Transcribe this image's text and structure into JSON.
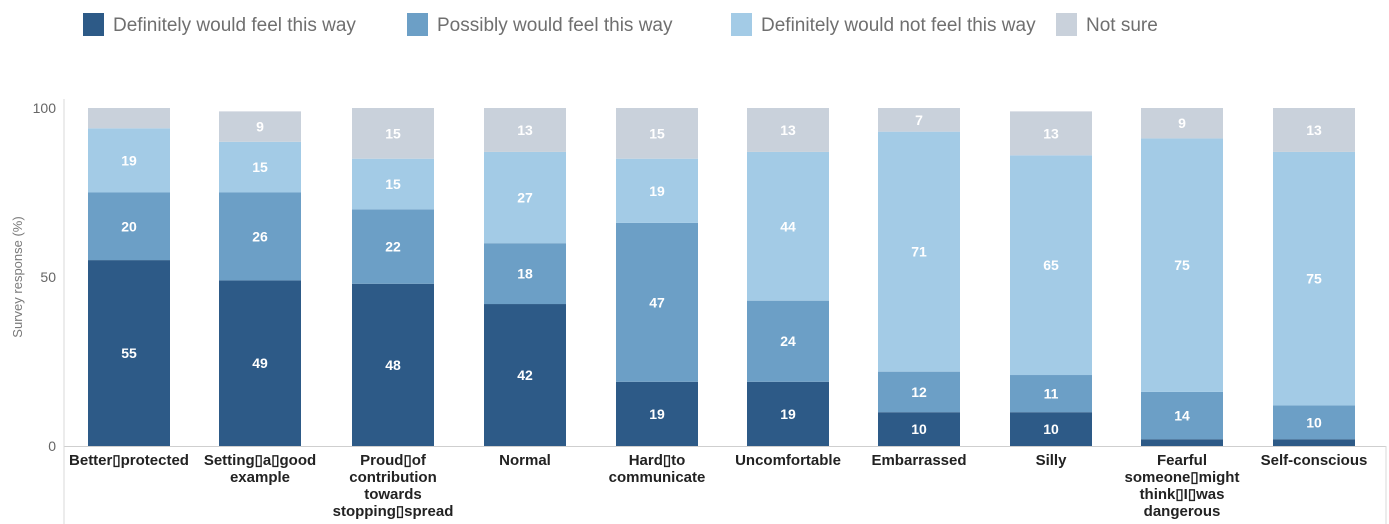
{
  "chart_data": {
    "type": "bar",
    "stacked": true,
    "ylabel": "Survey response (%)",
    "ylim": [
      0,
      100
    ],
    "yticks": [
      0,
      50,
      100
    ],
    "grid": false,
    "legend_position": "top",
    "categories": [
      "Better protected",
      "Setting a good example",
      "Proud of contribution towards stopping spread",
      "Normal",
      "Hard to communicate",
      "Uncomfortable",
      "Embarrassed",
      "Silly",
      "Fearful someone might think I was dangerous",
      "Self-conscious"
    ],
    "category_lines": [
      [
        "Better▯protected"
      ],
      [
        "Setting▯a▯good",
        "example"
      ],
      [
        "Proud▯of",
        "contribution",
        "towards",
        "stopping▯spread"
      ],
      [
        "Normal"
      ],
      [
        "Hard▯to",
        "communicate"
      ],
      [
        "Uncomfortable"
      ],
      [
        "Embarrassed"
      ],
      [
        "Silly"
      ],
      [
        "Fearful",
        "someone▯might",
        "think▯I▯was",
        "dangerous"
      ],
      [
        "Self-conscious"
      ]
    ],
    "series": [
      {
        "name": "Definitely would feel this way",
        "color": "#2d5a87",
        "values": [
          55,
          49,
          48,
          42,
          19,
          19,
          10,
          10,
          2,
          2
        ],
        "labels": [
          "55",
          "49",
          "48",
          "42",
          "19",
          "19",
          "10",
          "10",
          "",
          ""
        ]
      },
      {
        "name": "Possibly would feel this way",
        "color": "#6c9fc6",
        "values": [
          20,
          26,
          22,
          18,
          47,
          24,
          12,
          11,
          14,
          10
        ],
        "labels": [
          "20",
          "26",
          "22",
          "18",
          "47",
          "24",
          "12",
          "11",
          "14",
          "10"
        ]
      },
      {
        "name": "Definitely would not feel this way",
        "color": "#a3cbe6",
        "values": [
          19,
          15,
          15,
          27,
          19,
          44,
          71,
          65,
          75,
          75
        ],
        "labels": [
          "19",
          "15",
          "15",
          "27",
          "19",
          "44",
          "71",
          "65",
          "75",
          "75"
        ]
      },
      {
        "name": "Not sure",
        "color": "#c9d1db",
        "values": [
          6,
          9,
          15,
          13,
          15,
          13,
          7,
          13,
          9,
          13
        ],
        "labels": [
          "",
          "9",
          "15",
          "13",
          "15",
          "13",
          "7",
          "13",
          "9",
          "13"
        ]
      }
    ]
  }
}
